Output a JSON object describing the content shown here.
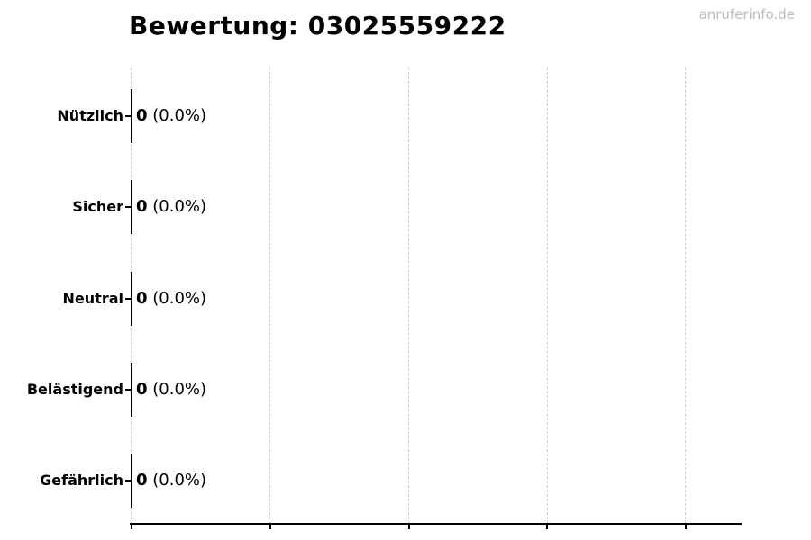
{
  "title": "Bewertung: 03025559222",
  "watermark": "anruferinfo.de",
  "chart_data": {
    "type": "bar",
    "orientation": "horizontal",
    "title": "Bewertung: 03025559222",
    "categories": [
      "Nützlich",
      "Sicher",
      "Neutral",
      "Belästigend",
      "Gefährlich"
    ],
    "values": [
      0,
      0,
      0,
      0,
      0
    ],
    "annotations": [
      {
        "value": "0",
        "percent": " (0.0%)"
      },
      {
        "value": "0",
        "percent": " (0.0%)"
      },
      {
        "value": "0",
        "percent": " (0.0%)"
      },
      {
        "value": "0",
        "percent": " (0.0%)"
      },
      {
        "value": "0",
        "percent": " (0.0%)"
      }
    ],
    "xlabel": "",
    "ylabel": "",
    "x_tick_labels": [],
    "gridline_count": 5,
    "grid": "vertical-dashed",
    "legend": null
  },
  "colors": {
    "background": "#ffffff",
    "text": "#000000",
    "watermark": "#bcbcbc",
    "gridline": "#cdcdcd",
    "axis": "#000000",
    "bar_edge": "#000000"
  }
}
